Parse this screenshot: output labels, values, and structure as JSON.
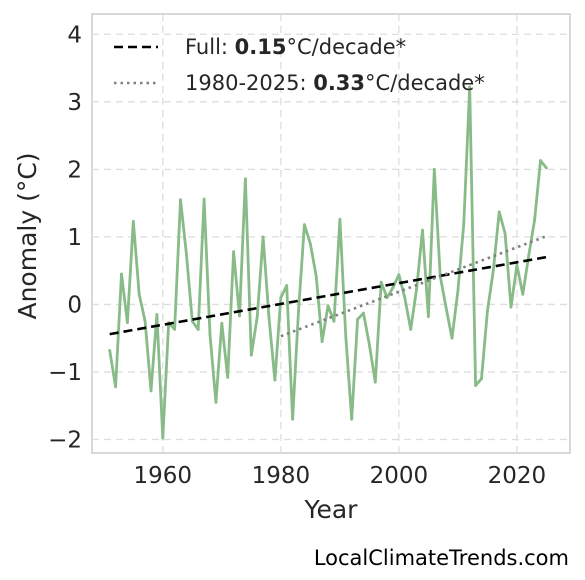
{
  "chart_data": {
    "type": "line",
    "xlabel": "Year",
    "ylabel": "Anomaly (°C)",
    "xlim": [
      1948,
      2029
    ],
    "ylim": [
      -2.2,
      4.3
    ],
    "xticks": [
      1960,
      1980,
      2000,
      2020
    ],
    "yticks": [
      -2,
      -1,
      0,
      1,
      2,
      3,
      4
    ],
    "ytick_labels": [
      "−2",
      "−1",
      "0",
      "1",
      "2",
      "3",
      "4"
    ],
    "grid": true,
    "legend_position": "top-left",
    "series": [
      {
        "color": "#88bb88",
        "x": [
          1951,
          1952,
          1953,
          1954,
          1955,
          1956,
          1957,
          1958,
          1959,
          1960,
          1961,
          1962,
          1963,
          1964,
          1965,
          1966,
          1967,
          1968,
          1969,
          1970,
          1971,
          1972,
          1973,
          1974,
          1975,
          1976,
          1977,
          1978,
          1979,
          1980,
          1981,
          1982,
          1983,
          1984,
          1985,
          1986,
          1987,
          1988,
          1989,
          1990,
          1991,
          1992,
          1993,
          1994,
          1995,
          1996,
          1997,
          1998,
          1999,
          2000,
          2001,
          2002,
          2003,
          2004,
          2005,
          2006,
          2007,
          2008,
          2009,
          2010,
          2011,
          2012,
          2013,
          2014,
          2015,
          2016,
          2017,
          2018,
          2019,
          2020,
          2021,
          2022,
          2023,
          2024,
          2025
        ],
        "y": [
          -0.68,
          -1.22,
          0.45,
          -0.27,
          1.23,
          0.15,
          -0.25,
          -1.28,
          -0.15,
          -1.98,
          -0.27,
          -0.37,
          1.55,
          0.75,
          -0.25,
          -0.37,
          1.56,
          -0.45,
          -1.45,
          -0.28,
          -1.08,
          0.78,
          -0.17,
          1.86,
          -0.75,
          -0.19,
          1.0,
          -0.2,
          -1.12,
          0.1,
          0.28,
          -1.7,
          -0.1,
          1.18,
          0.9,
          0.42,
          -0.55,
          -0.02,
          -0.25,
          1.26,
          -0.48,
          -1.7,
          -0.22,
          -0.13,
          -0.6,
          -1.15,
          0.33,
          0.1,
          0.25,
          0.44,
          0.1,
          -0.37,
          0.23,
          1.1,
          -0.18,
          2.0,
          0.42,
          -0.05,
          -0.5,
          0.2,
          1.2,
          3.22,
          -1.2,
          -1.1,
          -0.1,
          0.5,
          1.37,
          1.05,
          -0.04,
          0.58,
          0.15,
          0.72,
          1.25,
          2.13,
          2.02
        ]
      }
    ],
    "trends": [
      {
        "style": "dashed",
        "color": "#000000",
        "x": [
          1951,
          2025
        ],
        "y": [
          -0.44,
          0.7
        ],
        "label_prefix": "Full: ",
        "label_value": "0.15",
        "label_suffix": "°C/decade*"
      },
      {
        "style": "dotted",
        "color": "#7f7f7f",
        "x": [
          1980,
          2025
        ],
        "y": [
          -0.47,
          1.01
        ],
        "label_prefix": "1980-2025: ",
        "label_value": "0.33",
        "label_suffix": "°C/decade*"
      }
    ]
  },
  "credit": "LocalClimateTrends.com"
}
